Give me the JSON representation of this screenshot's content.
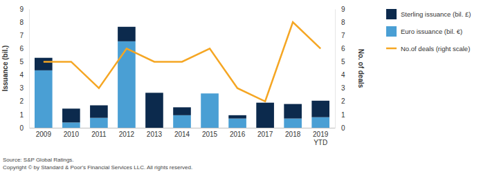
{
  "chart_data": {
    "type": "bar",
    "stacked": true,
    "legend": "right",
    "y_label": "Issuance (bil.)",
    "y2_label": "No. of deals",
    "categories": [
      "2009",
      "2010",
      "2011",
      "2012",
      "2013",
      "2014",
      "2015",
      "2016",
      "2017",
      "2018",
      "2019 YTD"
    ],
    "series": [
      {
        "name": "Sterling issuance (bil. £)",
        "type": "bar",
        "color": "#0c2a4d",
        "values": [
          0.95,
          1.05,
          0.95,
          1.1,
          2.65,
          0.6,
          0,
          0.25,
          1.9,
          1.1,
          1.25
        ]
      },
      {
        "name": "Euro issuance (bil. €)",
        "type": "bar",
        "color": "#4a9fd4",
        "values": [
          4.35,
          0.4,
          0.75,
          6.55,
          0,
          0.95,
          2.6,
          0.7,
          0,
          0.7,
          0.8
        ]
      },
      {
        "name": "No.of deals (right scale)",
        "type": "line",
        "axis": "y2",
        "color": "#f5a623",
        "values": [
          5,
          5,
          3,
          6,
          5,
          5,
          6,
          3,
          2,
          8,
          6
        ]
      }
    ],
    "ylim": [
      0,
      9
    ],
    "yticks": [
      0,
      1,
      2,
      3,
      4,
      5,
      6,
      7,
      8,
      9
    ],
    "y2lim": [
      0,
      9
    ],
    "y2ticks": [
      0,
      1,
      2,
      3,
      4,
      5,
      6,
      7,
      8,
      9
    ],
    "annotations": [
      "Source: S&P Global Ratings.",
      "Copyright © by Standard & Poor's Financial Services LLC. All rights reserved."
    ]
  }
}
